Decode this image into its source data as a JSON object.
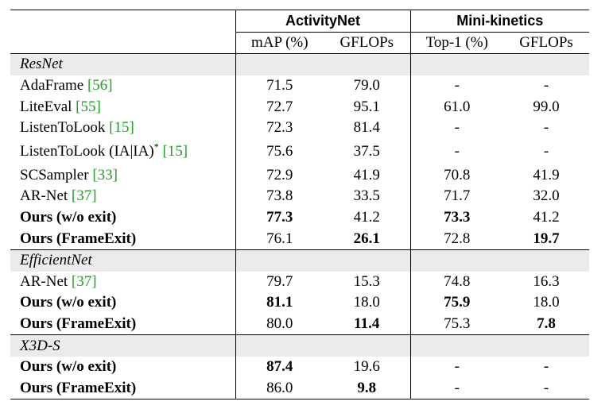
{
  "header": {
    "group_activitynet": "ActivityNet",
    "group_minikinetics": "Mini-kinetics",
    "col_map": "mAP (%)",
    "col_gflops_1": "GFLOPs",
    "col_top1": "Top-1 (%)",
    "col_gflops_2": "GFLOPs"
  },
  "sections": [
    {
      "title": "ResNet",
      "rows": [
        {
          "name": "AdaFrame ",
          "cite": "[56]",
          "sup": "",
          "cite_after_sup": "",
          "bold": false,
          "map": "71.5",
          "gflops_a": "79.0",
          "top1": "-",
          "gflops_k": "-",
          "bold_cells": []
        },
        {
          "name": "LiteEval ",
          "cite": "[55]",
          "sup": "",
          "cite_after_sup": "",
          "bold": false,
          "map": "72.7",
          "gflops_a": "95.1",
          "top1": "61.0",
          "gflops_k": "99.0",
          "bold_cells": []
        },
        {
          "name": "ListenToLook ",
          "cite": "[15]",
          "sup": "",
          "cite_after_sup": "",
          "bold": false,
          "map": "72.3",
          "gflops_a": "81.4",
          "top1": "-",
          "gflops_k": "-",
          "bold_cells": []
        },
        {
          "name": "ListenToLook (IA|IA)",
          "cite": "",
          "sup": "*",
          "cite_after_sup": "[15]",
          "bold": false,
          "map": "75.6",
          "gflops_a": "37.5",
          "top1": "-",
          "gflops_k": "-",
          "bold_cells": []
        },
        {
          "name": "SCSampler ",
          "cite": "[33]",
          "sup": "",
          "cite_after_sup": "",
          "bold": false,
          "map": "72.9",
          "gflops_a": "41.9",
          "top1": "70.8",
          "gflops_k": "41.9",
          "bold_cells": []
        },
        {
          "name": "AR-Net ",
          "cite": "[37]",
          "sup": "",
          "cite_after_sup": "",
          "bold": false,
          "map": "73.8",
          "gflops_a": "33.5",
          "top1": "71.7",
          "gflops_k": "32.0",
          "bold_cells": []
        },
        {
          "name": "Ours (w/o exit)",
          "cite": "",
          "sup": "",
          "cite_after_sup": "",
          "bold": true,
          "map": "77.3",
          "gflops_a": "41.2",
          "top1": "73.3",
          "gflops_k": "41.2",
          "bold_cells": [
            "map",
            "top1"
          ]
        },
        {
          "name": "Ours (FrameExit)",
          "cite": "",
          "sup": "",
          "cite_after_sup": "",
          "bold": true,
          "map": "76.1",
          "gflops_a": "26.1",
          "top1": "72.8",
          "gflops_k": "19.7",
          "bold_cells": [
            "gflops_a",
            "gflops_k"
          ]
        }
      ]
    },
    {
      "title": "EfficientNet",
      "rows": [
        {
          "name": "AR-Net ",
          "cite": "[37]",
          "sup": "",
          "cite_after_sup": "",
          "bold": false,
          "map": "79.7",
          "gflops_a": "15.3",
          "top1": "74.8",
          "gflops_k": "16.3",
          "bold_cells": []
        },
        {
          "name": "Ours (w/o exit)",
          "cite": "",
          "sup": "",
          "cite_after_sup": "",
          "bold": true,
          "map": "81.1",
          "gflops_a": "18.0",
          "top1": "75.9",
          "gflops_k": "18.0",
          "bold_cells": [
            "map",
            "top1"
          ]
        },
        {
          "name": "Ours (FrameExit)",
          "cite": "",
          "sup": "",
          "cite_after_sup": "",
          "bold": true,
          "map": "80.0",
          "gflops_a": "11.4",
          "top1": "75.3",
          "gflops_k": "7.8",
          "bold_cells": [
            "gflops_a",
            "gflops_k"
          ]
        }
      ]
    },
    {
      "title": "X3D-S",
      "rows": [
        {
          "name": "Ours (w/o exit)",
          "cite": "",
          "sup": "",
          "cite_after_sup": "",
          "bold": true,
          "map": "87.4",
          "gflops_a": "19.6",
          "top1": "-",
          "gflops_k": "-",
          "bold_cells": [
            "map"
          ]
        },
        {
          "name": "Ours (FrameExit)",
          "cite": "",
          "sup": "",
          "cite_after_sup": "",
          "bold": true,
          "map": "86.0",
          "gflops_a": "9.8",
          "top1": "-",
          "gflops_k": "-",
          "bold_cells": [
            "gflops_a"
          ]
        }
      ]
    }
  ]
}
